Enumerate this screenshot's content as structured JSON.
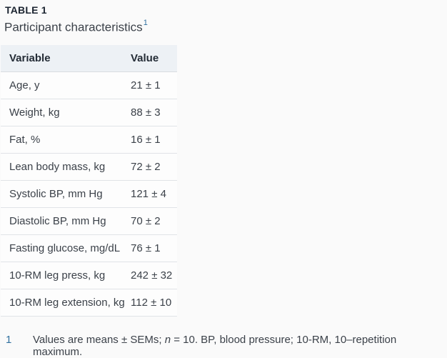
{
  "table_label": "TABLE 1",
  "caption": {
    "text": "Participant characteristics",
    "footnote_ref": "1"
  },
  "table": {
    "columns": [
      "Variable",
      "Value"
    ],
    "rows": [
      {
        "variable": "Age, y",
        "value": "21 ± 1"
      },
      {
        "variable": "Weight, kg",
        "value": "88 ± 3"
      },
      {
        "variable": "Fat, %",
        "value": "16 ± 1"
      },
      {
        "variable": "Lean body mass, kg",
        "value": "72 ± 2"
      },
      {
        "variable": "Systolic BP, mm Hg",
        "value": "121 ± 4"
      },
      {
        "variable": "Diastolic BP, mm Hg",
        "value": "70 ± 2"
      },
      {
        "variable": "Fasting glucose, mg/dL",
        "value": "76 ± 1"
      },
      {
        "variable": "10-RM leg press, kg",
        "value": "242 ± 32"
      },
      {
        "variable": "10-RM leg extension, kg",
        "value": "112 ± 10"
      }
    ]
  },
  "footnote": {
    "marker": "1",
    "text_before_n": "Values are means ± SEMs; ",
    "italic_n": "n",
    "text_after_n": " = 10. BP, blood pressure; 10-RM, 10–repetition maximum."
  },
  "colors": {
    "page_background": "#fafafa",
    "header_row_background": "#edf1f5",
    "row_divider": "#e0e3e7",
    "link_blue": "#30709f",
    "title_text": "#1b2430",
    "body_text": "#3b4149"
  }
}
